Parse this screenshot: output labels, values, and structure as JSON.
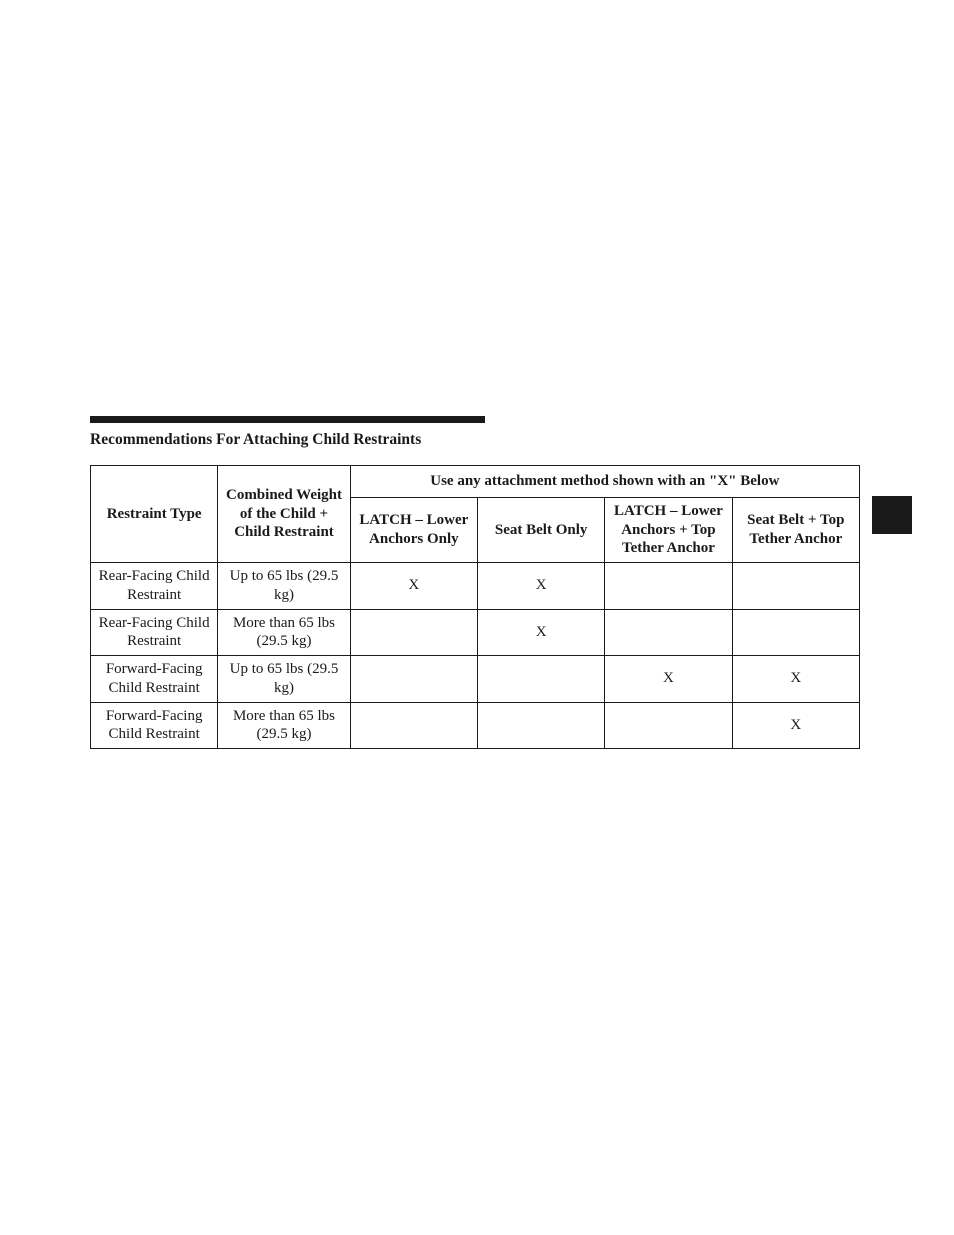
{
  "section_title": "Recommendations For Attaching Child Restraints",
  "table": {
    "header": {
      "restraint_type": "Restraint Type",
      "combined_weight": "Combined Weight of the Child + Child Restraint",
      "methods_caption": "Use any attachment method shown with an \"X\" Below",
      "method1": "LATCH – Lower Anchors Only",
      "method2": "Seat Belt Only",
      "method3": "LATCH – Lower Anchors + Top Tether Anchor",
      "method4": "Seat Belt + Top Tether Anchor"
    },
    "rows": [
      {
        "restraint": "Rear-Facing Child Restraint",
        "weight": "Up to 65 lbs (29.5 kg)",
        "m1": "X",
        "m2": "X",
        "m3": "",
        "m4": ""
      },
      {
        "restraint": "Rear-Facing Child Restraint",
        "weight": "More than 65 lbs (29.5 kg)",
        "m1": "",
        "m2": "X",
        "m3": "",
        "m4": ""
      },
      {
        "restraint": "Forward-Facing Child Restraint",
        "weight": "Up to 65 lbs (29.5 kg)",
        "m1": "",
        "m2": "",
        "m3": "X",
        "m4": "X"
      },
      {
        "restraint": "Forward-Facing Child Restraint",
        "weight": "More than 65 lbs (29.5 kg)",
        "m1": "",
        "m2": "",
        "m3": "",
        "m4": "X"
      }
    ]
  },
  "colors": {
    "text": "#1a1a1a",
    "background": "#ffffff",
    "rule": "#1a1a1a",
    "border": "#1a1a1a"
  }
}
